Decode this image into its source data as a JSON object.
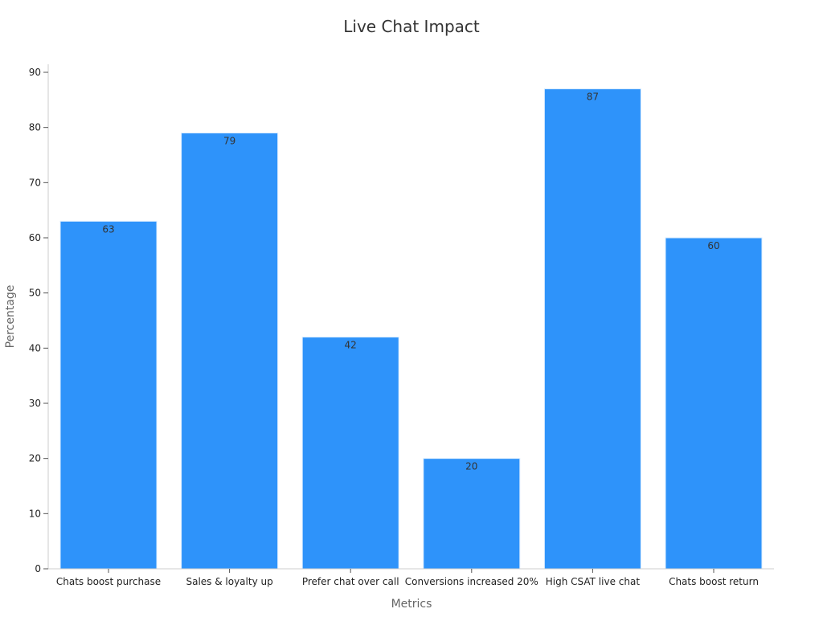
{
  "chart_data": {
    "type": "bar",
    "title": "Live Chat Impact",
    "xlabel": "Metrics",
    "ylabel": "Percentage",
    "categories": [
      "Chats boost purchase",
      "Sales & loyalty up",
      "Prefer chat over call",
      "Conversions increased 20%",
      "High CSAT live chat",
      "Chats boost return"
    ],
    "values": [
      63,
      79,
      42,
      20,
      87,
      60
    ],
    "ylim": [
      0,
      90
    ],
    "yticks": [
      0,
      10,
      20,
      30,
      40,
      50,
      60,
      70,
      80,
      90
    ],
    "bar_color": "#2e93fa",
    "grid": false,
    "legend": "none"
  }
}
